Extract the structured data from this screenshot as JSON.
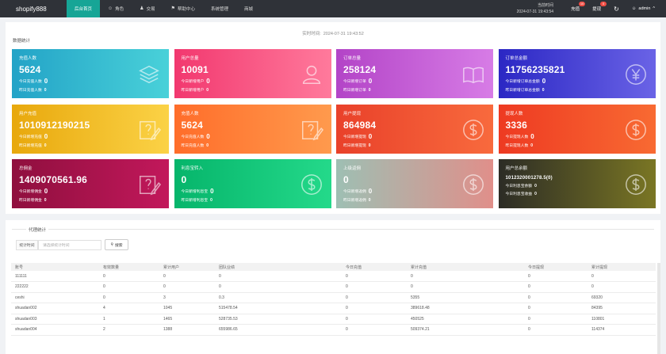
{
  "app": {
    "logo": "shopify888"
  },
  "nav": [
    {
      "label": "后台首页",
      "icon": "",
      "active": true
    },
    {
      "label": "角色",
      "icon": "person-icon"
    },
    {
      "label": "交易",
      "icon": "group-icon"
    },
    {
      "label": "帮助中心",
      "icon": "flag-icon"
    },
    {
      "label": "系统管理",
      "icon": ""
    },
    {
      "label": "商城",
      "icon": ""
    }
  ],
  "header": {
    "time_label": "当前时间",
    "time_value": "2024-07-31 19:43:54",
    "recharge_label": "充值",
    "recharge_badge": "10",
    "withdraw_label": "提现",
    "withdraw_badge": "0",
    "refresh_icon": "refresh-icon",
    "user_label": "admin",
    "user_icon": "person-icon",
    "caret": "^"
  },
  "stats": {
    "section_title": "数据统计",
    "time_label": "实时时间:",
    "time_value": "2024-07-31 19:43:52",
    "cards": [
      {
        "color": "cyan",
        "title": "充值人数",
        "value": "5624",
        "l1": "今日充值人数",
        "v1": "0",
        "l2": "昨日充值人数",
        "v2": "0",
        "icon": "layers-icon"
      },
      {
        "color": "pink",
        "title": "用户总量",
        "value": "10091",
        "l1": "今日新增用户",
        "v1": "0",
        "l2": "昨日新增用户",
        "v2": "0",
        "icon": "user-icon"
      },
      {
        "color": "purple",
        "title": "订单总量",
        "value": "258124",
        "l1": "今日新增订单",
        "v1": "0",
        "l2": "昨日新增订单",
        "v2": "0",
        "icon": "book-icon"
      },
      {
        "color": "blue",
        "title": "订单总金额",
        "value": "11756235821",
        "l1": "今日新增订单总金额",
        "v1": "0",
        "l2": "昨日新增订单总金额",
        "v2": "0",
        "icon": "yen-icon"
      },
      {
        "color": "yellow",
        "title": "用户充值",
        "value": "1010912190215",
        "l1": "今日新增充值",
        "v1": "0",
        "l2": "昨日新增充值",
        "v2": "0",
        "icon": "edit-icon"
      },
      {
        "color": "orange",
        "title": "充值人数",
        "value": "5624",
        "l1": "今日充值人数",
        "v1": "0",
        "l2": "昨日充值人数",
        "v2": "0",
        "icon": "edit-icon"
      },
      {
        "color": "red",
        "title": "用户提现",
        "value": "864984",
        "l1": "今日新增提现",
        "v1": "0",
        "l2": "昨日新增提现",
        "v2": "0",
        "icon": "dollar-icon"
      },
      {
        "color": "redorange",
        "title": "提现人数",
        "value": "3336",
        "l1": "今日提现人数",
        "v1": "0",
        "l2": "昨日提现人数",
        "v2": "0",
        "icon": "dollar-icon"
      },
      {
        "color": "crimson",
        "title": "总佣金",
        "value": "1409070561.96",
        "l1": "今日新增佣金",
        "v1": "0",
        "l2": "昨日新增佣金",
        "v2": "0",
        "icon": "edit-icon"
      },
      {
        "color": "green",
        "title": "利息宝转入",
        "value": "0",
        "l1": "今日新增利息宝",
        "v1": "0",
        "l2": "昨日新增利息宝",
        "v2": "0",
        "icon": "dollar-icon"
      },
      {
        "color": "rose",
        "title": "上级返佣",
        "value": "0",
        "l1": "今日新增返佣",
        "v1": "0",
        "l2": "昨日新增返佣",
        "v2": "0",
        "icon": "dollar-icon"
      },
      {
        "color": "dark",
        "title": "用户总余额",
        "value": "1012320001278.5(0)",
        "value_small": true,
        "l1": "今日利息宝余额",
        "v1": "0",
        "l2": "今日利息宝收益",
        "v2": "0",
        "icon": "dollar-icon"
      }
    ]
  },
  "agent": {
    "section_title": "代理统计",
    "filter_label": "统计时间",
    "filter_placeholder": "请选择统计时间",
    "search_label": "搜索",
    "columns": [
      "账号",
      "有效数量",
      "累计用户",
      "团队业绩",
      "今日充值",
      "累计充值",
      "今日提现",
      "累计提现"
    ],
    "rows": [
      [
        "111111",
        "0",
        "0",
        "0",
        "0",
        "0",
        "0",
        "0"
      ],
      [
        "222222",
        "0",
        "0",
        "0",
        "0",
        "0",
        "0",
        "0"
      ],
      [
        "ceshi",
        "0",
        "3",
        "0.3",
        "0",
        "5355",
        "0",
        "69320"
      ],
      [
        "shuadan002",
        "4",
        "1045",
        "515478.54",
        "0",
        "389618.48",
        "0",
        "84395"
      ],
      [
        "shuadan003",
        "1",
        "1465",
        "528735.53",
        "0",
        "450525",
        "0",
        "110801"
      ],
      [
        "shuadan004",
        "2",
        "1388",
        "655986.65",
        "0",
        "509374.21",
        "0",
        "114374"
      ]
    ]
  }
}
